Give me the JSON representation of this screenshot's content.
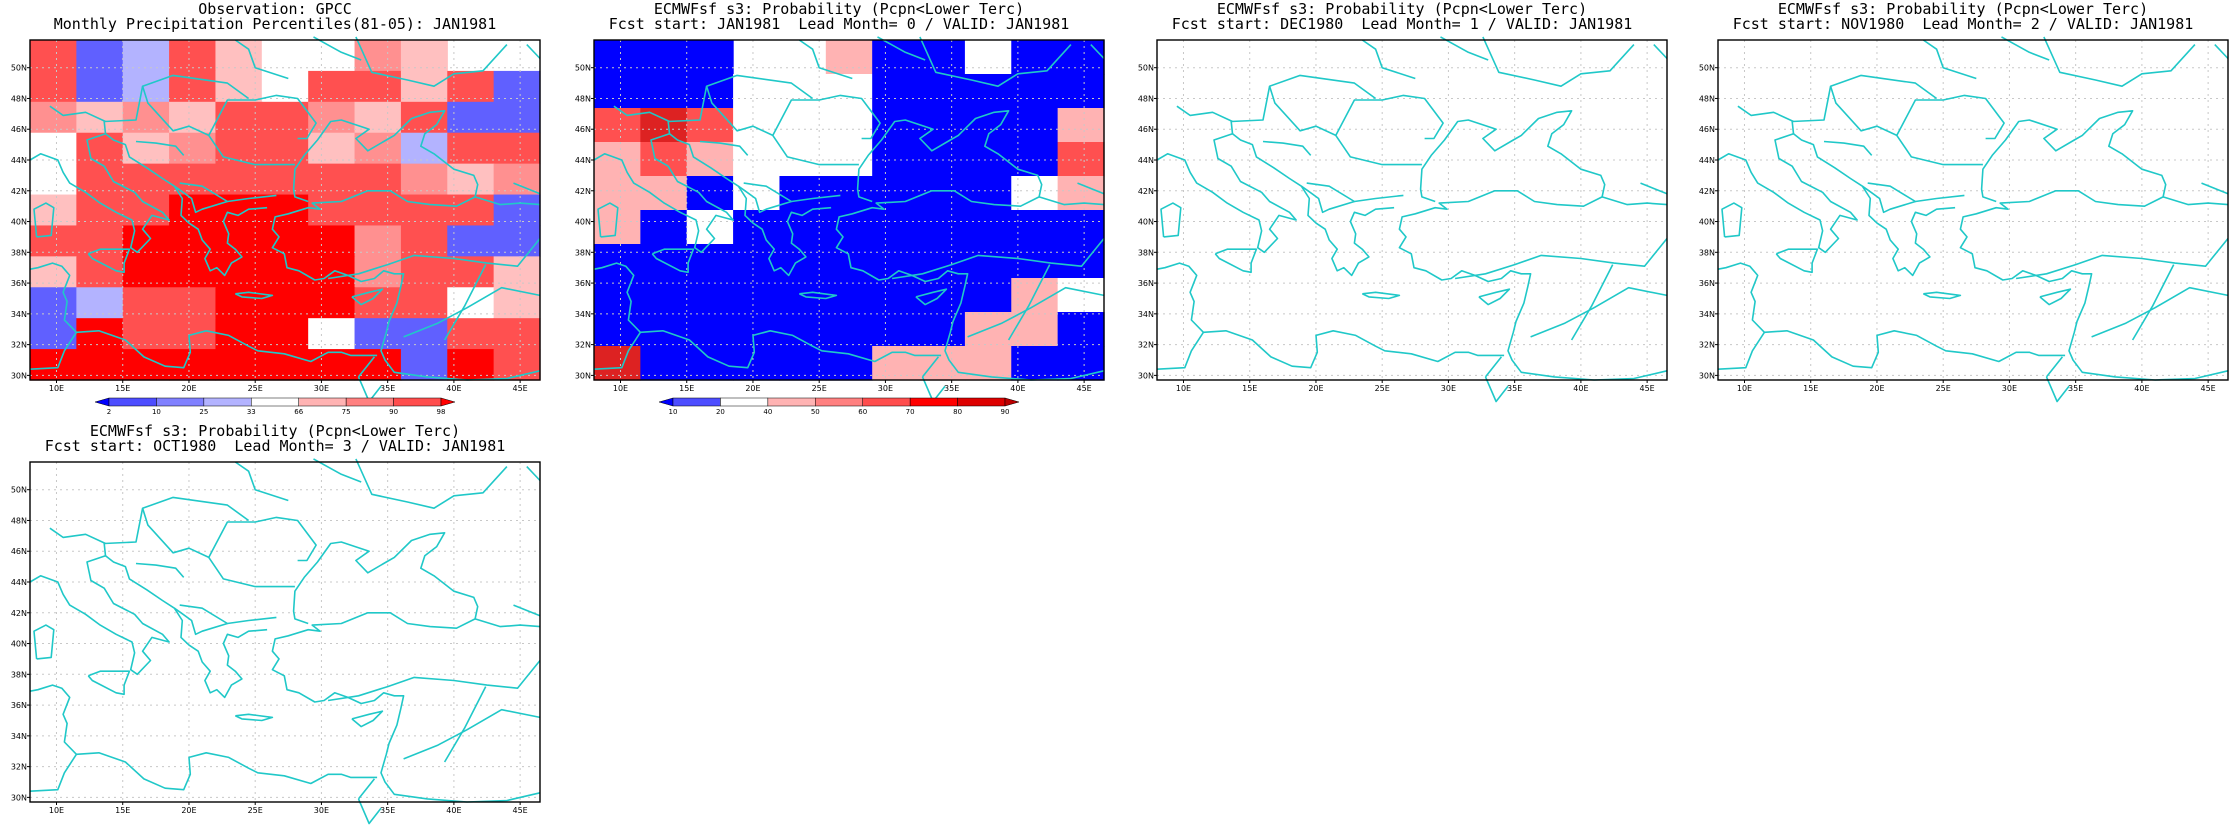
{
  "panels": [
    {
      "title1": "Observation: GPCC",
      "title2": "Monthly Precipitation Percentiles(81-05): JAN1981",
      "filled": true,
      "legend": "obs"
    },
    {
      "title1": "ECMWFsf s3: Probability (Pcpn<Lower Terc)",
      "title2": "Fcst start: JAN1981  Lead Month= 0 / VALID: JAN1981",
      "filled": true,
      "legend": "prob"
    },
    {
      "title1": "ECMWFsf s3: Probability (Pcpn<Lower Terc)",
      "title2": "Fcst start: DEC1980  Lead Month= 1 / VALID: JAN1981",
      "filled": false
    },
    {
      "title1": "ECMWFsf s3: Probability (Pcpn<Lower Terc)",
      "title2": "Fcst start: NOV1980  Lead Month= 2 / VALID: JAN1981",
      "filled": false
    },
    {
      "title1": "ECMWFsf s3: Probability (Pcpn<Lower Terc)",
      "title2": "Fcst start: OCT1980  Lead Month= 3 / VALID: JAN1981",
      "filled": false
    }
  ],
  "map": {
    "lon_labels": [
      "10E",
      "15E",
      "20E",
      "25E",
      "30E",
      "35E",
      "40E",
      "45E"
    ],
    "lat_labels": [
      "30N",
      "32N",
      "34N",
      "36N",
      "38N",
      "40N",
      "42N",
      "44N",
      "46N",
      "48N",
      "50N"
    ],
    "coast_color": "#20c8c8"
  },
  "legend_obs": {
    "labels": [
      "2",
      "10",
      "25",
      "33",
      "66",
      "75",
      "90",
      "98"
    ],
    "colors": [
      "#0000ff",
      "#4d4dff",
      "#8080ff",
      "#b3b3ff",
      "#ffffff",
      "#ffb3b3",
      "#ff8080",
      "#ff4d4d",
      "#ff0000"
    ]
  },
  "legend_prob": {
    "labels": [
      "10",
      "20",
      "40",
      "50",
      "60",
      "70",
      "80",
      "90"
    ],
    "colors": [
      "#0000ff",
      "#4d4dff",
      "#ffffff",
      "#ffb3b3",
      "#ff8080",
      "#ff4d4d",
      "#ff0000",
      "#dd0000",
      "#bb0000"
    ]
  }
}
